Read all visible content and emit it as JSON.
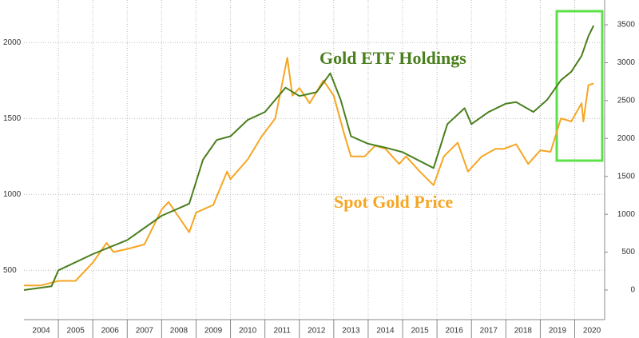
{
  "chart_data": {
    "type": "line",
    "annotations": [
      "Gold ETF Holdings",
      "Spot Gold Price"
    ],
    "xlim": [
      2004,
      2020.87
    ],
    "xticks": [
      {
        "value": 2004.5,
        "label": "2004"
      },
      {
        "value": 2005.5,
        "label": "2005"
      },
      {
        "value": 2006.5,
        "label": "2006"
      },
      {
        "value": 2007.5,
        "label": "2007"
      },
      {
        "value": 2008.5,
        "label": "2008"
      },
      {
        "value": 2009.5,
        "label": "2009"
      },
      {
        "value": 2010.5,
        "label": "2010"
      },
      {
        "value": 2011.5,
        "label": "2011"
      },
      {
        "value": 2012.5,
        "label": "2012"
      },
      {
        "value": 2013.5,
        "label": "2013"
      },
      {
        "value": 2014.5,
        "label": "2014"
      },
      {
        "value": 2015.5,
        "label": "2015"
      },
      {
        "value": 2016.5,
        "label": "2016"
      },
      {
        "value": 2017.5,
        "label": "2017"
      },
      {
        "value": 2018.5,
        "label": "2018"
      },
      {
        "value": 2019.5,
        "label": "2019"
      },
      {
        "value": 2020.5,
        "label": "2020"
      }
    ],
    "xgrid": [
      2005,
      2006,
      2007,
      2008,
      2009,
      2010,
      2011,
      2012,
      2013,
      2014,
      2015,
      2016,
      2017,
      2018,
      2019,
      2020
    ],
    "ylim": [
      175,
      2280
    ],
    "yticks": [
      500,
      1000,
      1500,
      2000
    ],
    "y2lim": [
      -390,
      3827
    ],
    "y2ticks": [
      0,
      500,
      1000,
      1500,
      2000,
      2500,
      3000,
      3500
    ],
    "grid": true,
    "series": [
      {
        "name": "Spot Gold Price",
        "color": "#f5a623",
        "axis": "y",
        "x": [
          2004.0,
          2004.5,
          2005.0,
          2005.5,
          2006.0,
          2006.4,
          2006.6,
          2007.0,
          2007.5,
          2008.0,
          2008.2,
          2008.8,
          2009.0,
          2009.5,
          2009.9,
          2010.0,
          2010.5,
          2010.9,
          2011.3,
          2011.65,
          2011.8,
          2012.0,
          2012.3,
          2012.7,
          2013.0,
          2013.3,
          2013.5,
          2013.9,
          2014.2,
          2014.5,
          2014.9,
          2015.1,
          2015.5,
          2015.9,
          2016.2,
          2016.6,
          2016.9,
          2017.3,
          2017.7,
          2017.95,
          2018.3,
          2018.65,
          2019.0,
          2019.3,
          2019.6,
          2019.9,
          2020.2,
          2020.25,
          2020.4,
          2020.55
        ],
        "values": [
          400,
          400,
          430,
          430,
          550,
          680,
          620,
          640,
          670,
          900,
          950,
          750,
          880,
          930,
          1150,
          1100,
          1230,
          1380,
          1500,
          1900,
          1650,
          1700,
          1600,
          1750,
          1650,
          1400,
          1250,
          1250,
          1320,
          1300,
          1200,
          1250,
          1150,
          1060,
          1250,
          1340,
          1150,
          1250,
          1300,
          1300,
          1330,
          1200,
          1290,
          1280,
          1500,
          1480,
          1600,
          1480,
          1720,
          1730
        ]
      },
      {
        "name": "Gold ETF Holdings",
        "color": "#4a7f1e",
        "axis": "y2",
        "x": [
          2004.0,
          2004.8,
          2005.0,
          2006.0,
          2007.0,
          2008.0,
          2008.8,
          2009.2,
          2009.6,
          2010.0,
          2010.5,
          2011.0,
          2011.6,
          2012.0,
          2012.5,
          2012.9,
          2013.2,
          2013.5,
          2014.0,
          2014.5,
          2015.0,
          2015.9,
          2016.3,
          2016.8,
          2017.0,
          2017.5,
          2018.0,
          2018.3,
          2018.8,
          2019.2,
          2019.6,
          2019.9,
          2020.2,
          2020.4,
          2020.55
        ],
        "values": [
          0,
          50,
          260,
          475,
          660,
          980,
          1140,
          1720,
          1980,
          2030,
          2245,
          2350,
          2670,
          2560,
          2610,
          2860,
          2510,
          2030,
          1930,
          1880,
          1820,
          1610,
          2190,
          2400,
          2190,
          2350,
          2460,
          2480,
          2350,
          2510,
          2770,
          2880,
          3090,
          3350,
          3490
        ]
      }
    ]
  }
}
